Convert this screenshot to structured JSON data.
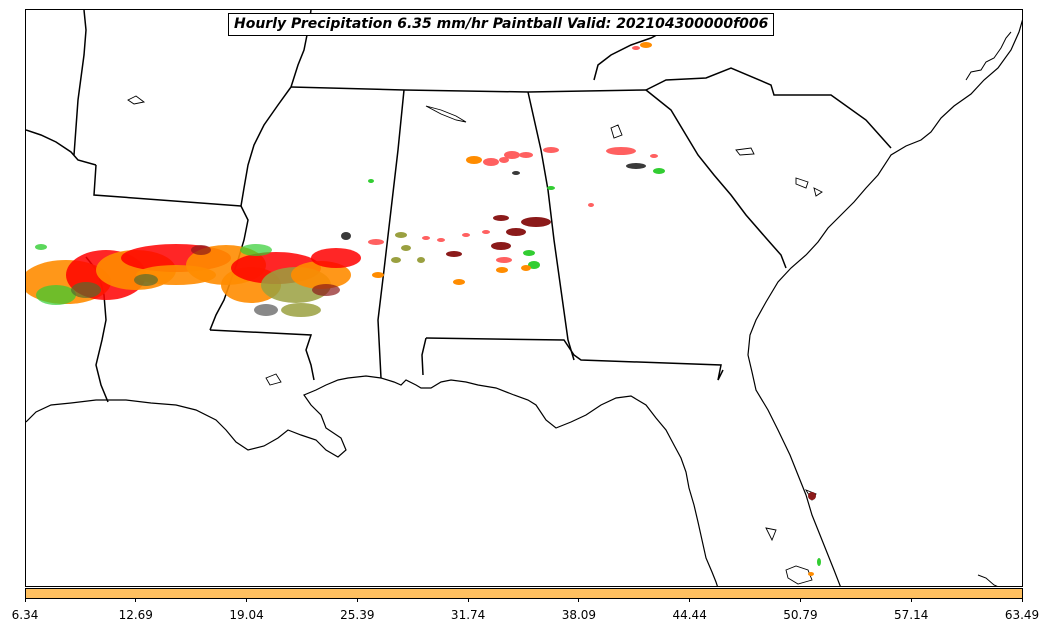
{
  "title": "Hourly Precipitation 6.35 mm/hr Paintball Valid: 202104300000f006",
  "map": {
    "region": "Southeastern United States",
    "features": [
      "state-borders",
      "coastline",
      "lakes"
    ],
    "precip_colors": [
      "#ff0000",
      "#ff8c00",
      "#ff6060",
      "#32cd32",
      "#556b2f",
      "#9aa040",
      "#8b1a1a",
      "#3a3a3a",
      "#d2691e"
    ]
  },
  "colorbar": {
    "fill_color": "#ffc060",
    "ticks": [
      "6.34",
      "12.69",
      "19.04",
      "25.39",
      "31.74",
      "38.09",
      "44.44",
      "50.79",
      "57.14",
      "63.49"
    ]
  }
}
